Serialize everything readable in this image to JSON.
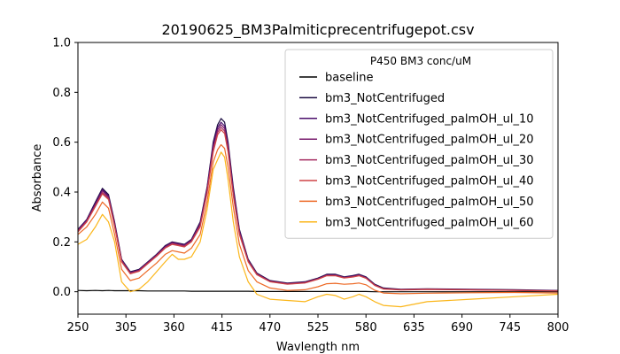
{
  "chart_data": {
    "type": "line",
    "title": "20190625_BM3Palmiticprecentrifugepot.csv",
    "xlabel": "Wavlength nm",
    "ylabel": "Absorbance",
    "xlim": [
      250,
      800
    ],
    "ylim": [
      -0.09,
      1.0
    ],
    "xticks": [
      250,
      305,
      360,
      415,
      470,
      525,
      580,
      635,
      690,
      745,
      800
    ],
    "yticks": [
      0.0,
      0.2,
      0.4,
      0.6,
      0.8,
      1.0
    ],
    "ytick_labels": [
      "0.0",
      "0.2",
      "0.4",
      "0.6",
      "0.8",
      "1.0"
    ],
    "grid": false,
    "legend": {
      "title": "P450 BM3 conc/uM",
      "placement": "top-right"
    },
    "x": [
      250,
      260,
      270,
      278,
      285,
      292,
      300,
      310,
      320,
      330,
      340,
      350,
      358,
      365,
      372,
      380,
      390,
      398,
      405,
      410,
      414,
      418,
      422,
      428,
      435,
      445,
      455,
      470,
      490,
      510,
      525,
      535,
      545,
      555,
      565,
      572,
      580,
      590,
      600,
      620,
      650,
      700,
      750,
      800
    ],
    "series": [
      {
        "name": "baseline",
        "color": "#000000",
        "values": [
          0.005,
          0.004,
          0.005,
          0.004,
          0.005,
          0.004,
          0.004,
          0.004,
          0.004,
          0.003,
          0.003,
          0.003,
          0.003,
          0.003,
          0.003,
          0.002,
          0.002,
          0.002,
          0.002,
          0.002,
          0.002,
          0.002,
          0.002,
          0.002,
          0.002,
          0.002,
          0.001,
          0.001,
          0.001,
          0.001,
          0.001,
          0.001,
          0.001,
          0.001,
          0.001,
          0.001,
          0.001,
          0.0,
          0.0,
          0.0,
          0.0,
          0.0,
          0.0,
          0.0
        ]
      },
      {
        "name": "bm3_NotCentrifuged",
        "color": "#1b0c41",
        "values": [
          0.25,
          0.29,
          0.36,
          0.415,
          0.39,
          0.28,
          0.13,
          0.08,
          0.09,
          0.12,
          0.15,
          0.185,
          0.2,
          0.195,
          0.19,
          0.21,
          0.28,
          0.42,
          0.6,
          0.67,
          0.695,
          0.68,
          0.6,
          0.42,
          0.25,
          0.13,
          0.075,
          0.045,
          0.035,
          0.04,
          0.055,
          0.07,
          0.07,
          0.06,
          0.065,
          0.07,
          0.06,
          0.03,
          0.015,
          0.01,
          0.012,
          0.01,
          0.008,
          0.005
        ]
      },
      {
        "name": "bm3_NotCentrifuged_palmOH_ul_10",
        "color": "#4a0c6b",
        "values": [
          0.248,
          0.288,
          0.355,
          0.41,
          0.385,
          0.275,
          0.127,
          0.078,
          0.088,
          0.118,
          0.148,
          0.183,
          0.198,
          0.193,
          0.188,
          0.208,
          0.275,
          0.415,
          0.59,
          0.66,
          0.68,
          0.665,
          0.59,
          0.41,
          0.245,
          0.127,
          0.073,
          0.043,
          0.033,
          0.038,
          0.053,
          0.068,
          0.068,
          0.058,
          0.063,
          0.068,
          0.058,
          0.028,
          0.013,
          0.009,
          0.011,
          0.009,
          0.007,
          0.004
        ]
      },
      {
        "name": "bm3_NotCentrifuged_palmOH_ul_20",
        "color": "#781c6d",
        "values": [
          0.245,
          0.285,
          0.35,
          0.405,
          0.38,
          0.27,
          0.125,
          0.076,
          0.086,
          0.116,
          0.146,
          0.18,
          0.196,
          0.19,
          0.186,
          0.205,
          0.27,
          0.41,
          0.58,
          0.65,
          0.67,
          0.655,
          0.58,
          0.4,
          0.24,
          0.125,
          0.071,
          0.042,
          0.032,
          0.037,
          0.052,
          0.066,
          0.066,
          0.057,
          0.061,
          0.066,
          0.056,
          0.027,
          0.012,
          0.008,
          0.01,
          0.008,
          0.006,
          0.004
        ]
      },
      {
        "name": "bm3_NotCentrifuged_palmOH_ul_30",
        "color": "#a52c60",
        "values": [
          0.243,
          0.282,
          0.345,
          0.398,
          0.375,
          0.265,
          0.122,
          0.074,
          0.084,
          0.114,
          0.144,
          0.177,
          0.193,
          0.188,
          0.183,
          0.202,
          0.265,
          0.4,
          0.57,
          0.64,
          0.66,
          0.645,
          0.57,
          0.39,
          0.235,
          0.122,
          0.07,
          0.041,
          0.031,
          0.036,
          0.051,
          0.065,
          0.065,
          0.056,
          0.06,
          0.065,
          0.055,
          0.026,
          0.012,
          0.008,
          0.01,
          0.008,
          0.006,
          0.003
        ]
      },
      {
        "name": "bm3_NotCentrifuged_palmOH_ul_40",
        "color": "#cf4446",
        "values": [
          0.24,
          0.28,
          0.342,
          0.393,
          0.37,
          0.262,
          0.12,
          0.072,
          0.082,
          0.112,
          0.142,
          0.175,
          0.19,
          0.185,
          0.18,
          0.2,
          0.26,
          0.395,
          0.56,
          0.63,
          0.65,
          0.635,
          0.56,
          0.385,
          0.23,
          0.12,
          0.068,
          0.04,
          0.03,
          0.035,
          0.05,
          0.064,
          0.064,
          0.055,
          0.059,
          0.064,
          0.054,
          0.025,
          0.011,
          0.007,
          0.009,
          0.007,
          0.005,
          0.003
        ]
      },
      {
        "name": "bm3_NotCentrifuged_palmOH_ul_50",
        "color": "#ed6925",
        "values": [
          0.23,
          0.26,
          0.31,
          0.36,
          0.335,
          0.23,
          0.09,
          0.045,
          0.055,
          0.085,
          0.115,
          0.15,
          0.165,
          0.16,
          0.155,
          0.175,
          0.23,
          0.36,
          0.52,
          0.57,
          0.59,
          0.575,
          0.5,
          0.34,
          0.19,
          0.085,
          0.04,
          0.015,
          0.005,
          0.008,
          0.02,
          0.032,
          0.034,
          0.03,
          0.032,
          0.035,
          0.028,
          0.006,
          -0.005,
          -0.008,
          -0.006,
          -0.004,
          -0.003,
          -0.005
        ]
      },
      {
        "name": "bm3_NotCentrifuged_palmOH_ul_60",
        "color": "#fbb61a",
        "values": [
          0.19,
          0.21,
          0.26,
          0.31,
          0.28,
          0.2,
          0.04,
          0.0,
          0.01,
          0.04,
          0.08,
          0.12,
          0.15,
          0.13,
          0.13,
          0.14,
          0.2,
          0.33,
          0.49,
          0.53,
          0.56,
          0.54,
          0.45,
          0.28,
          0.14,
          0.04,
          -0.01,
          -0.03,
          -0.035,
          -0.04,
          -0.02,
          -0.01,
          -0.015,
          -0.03,
          -0.02,
          -0.01,
          -0.02,
          -0.04,
          -0.055,
          -0.06,
          -0.04,
          -0.03,
          -0.02,
          -0.01
        ]
      }
    ]
  }
}
